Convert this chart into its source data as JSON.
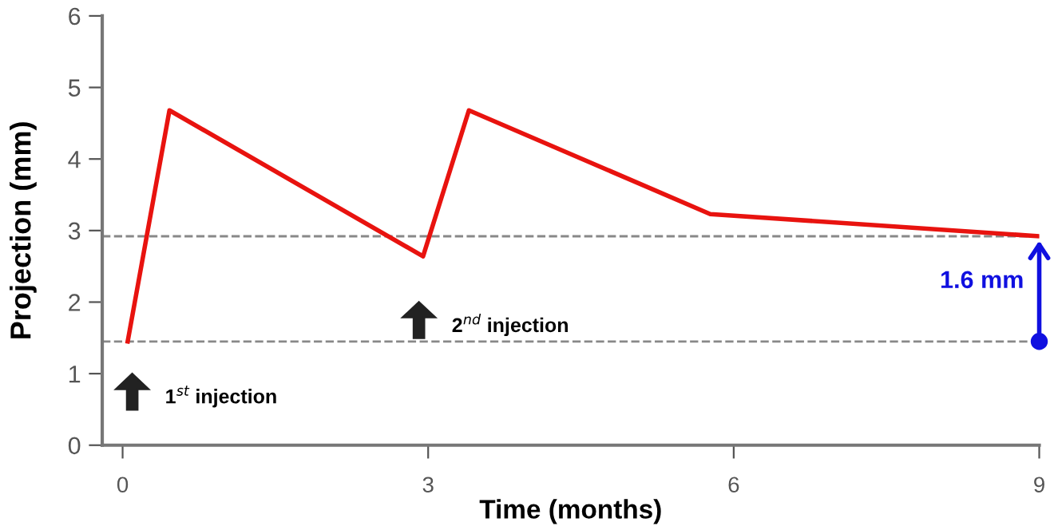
{
  "chart_data": {
    "type": "line",
    "xlabel": "Time (months)",
    "ylabel": "Projection (mm)",
    "x": [
      0.05,
      0.46,
      2.95,
      3.4,
      5.77,
      9
    ],
    "series": [
      {
        "color": "#e8130f",
        "values": [
          1.45,
          4.68,
          2.64,
          4.68,
          3.23,
          2.92
        ]
      },
      {
        "type": "scatter",
        "x": [
          9
        ],
        "color": "#1010e0",
        "marker": "circle",
        "values": [
          1.45
        ]
      }
    ],
    "xlim": [
      -0.2,
      9
    ],
    "xticks": [
      0,
      3,
      6,
      9
    ],
    "ylim": [
      0,
      6
    ],
    "yticks": [
      0,
      1,
      2,
      3,
      4,
      5,
      6
    ],
    "grid": false,
    "legend": false,
    "marker": "none",
    "line_style": "solid",
    "ref_lines": [
      {
        "axis": "y",
        "value": 2.92,
        "color": "#888888",
        "line_style": "dashed"
      },
      {
        "axis": "y",
        "value": 1.45,
        "color": "#888888",
        "line_style": "dashed"
      }
    ],
    "annotations": [
      "1$^{st}$ injection",
      "2$^{nd}$ injection",
      {
        "text": "1.6 mm",
        "x": 9,
        "y": 2.92
      }
    ]
  }
}
